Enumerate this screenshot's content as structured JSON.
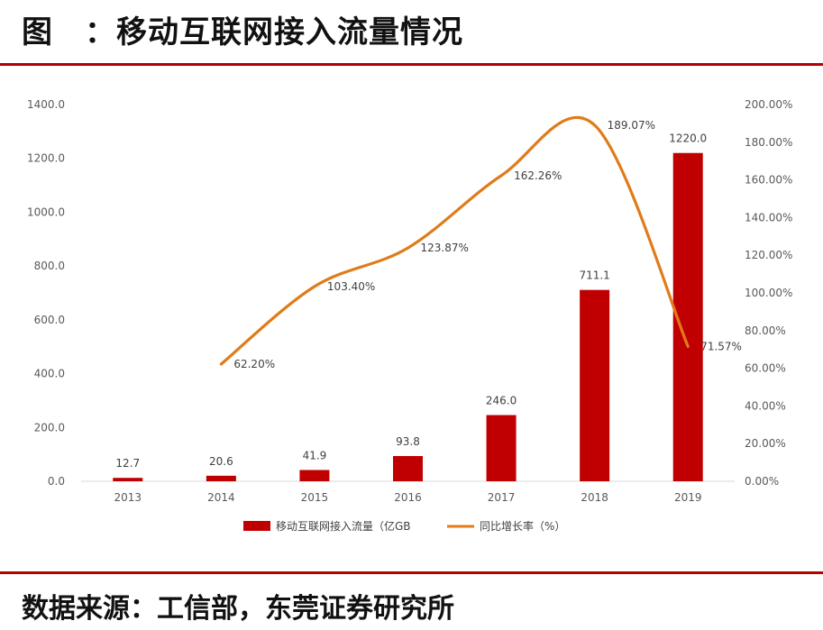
{
  "header": {
    "title": "图　：移动互联网接入流量情况"
  },
  "footer": {
    "source": "数据来源：工信部，东莞证券研究所"
  },
  "colors": {
    "bar": "#c00000",
    "line": "#e07b1a",
    "rule": "#b30000"
  },
  "chart_data": {
    "type": "bar",
    "categories": [
      "2013",
      "2014",
      "2015",
      "2016",
      "2017",
      "2018",
      "2019"
    ],
    "series": [
      {
        "name": "移动互联网接入流量（亿GB",
        "type": "bar",
        "axis": "left",
        "values": [
          12.7,
          20.6,
          41.9,
          93.8,
          246.0,
          711.1,
          1220.0
        ],
        "labels": [
          "12.7",
          "20.6",
          "41.9",
          "93.8",
          "246.0",
          "711.1",
          "1220.0"
        ]
      },
      {
        "name": "同比增长率（%）",
        "type": "line",
        "axis": "right",
        "values": [
          null,
          62.2,
          103.4,
          123.87,
          162.26,
          189.07,
          71.57
        ],
        "labels": [
          "",
          "62.20%",
          "103.40%",
          "123.87%",
          "162.26%",
          "189.07%",
          "71.57%"
        ]
      }
    ],
    "left_axis": {
      "ylim": [
        0,
        1400
      ],
      "ticks": [
        "0.0",
        "200.0",
        "400.0",
        "600.0",
        "800.0",
        "1000.0",
        "1200.0",
        "1400.0"
      ]
    },
    "right_axis": {
      "ylim": [
        0,
        200
      ],
      "ticks": [
        "0.00%",
        "20.00%",
        "40.00%",
        "60.00%",
        "80.00%",
        "100.00%",
        "120.00%",
        "140.00%",
        "160.00%",
        "180.00%",
        "200.00%"
      ]
    },
    "legend": "bottom",
    "grid": false
  }
}
